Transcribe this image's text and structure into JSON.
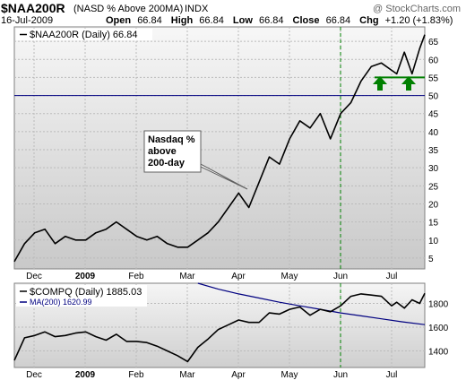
{
  "header": {
    "symbol": "$NAA200R",
    "name": "(NASD % Above 200MA)",
    "exchange": "INDX",
    "watermark": "@ StockCharts.com",
    "date": "16-Jul-2009",
    "open_label": "Open",
    "open": "66.84",
    "high_label": "High",
    "high": "66.84",
    "low_label": "Low",
    "low": "66.84",
    "close_label": "Close",
    "close": "66.84",
    "chg_label": "Chg",
    "chg": "+1.20 (+1.83%)"
  },
  "chart_data": [
    {
      "type": "line",
      "legend": "$NAA200R (Daily) 66.84",
      "ylim": [
        2,
        69
      ],
      "y_ticks": [
        "5",
        "10",
        "15",
        "20",
        "25",
        "30",
        "35",
        "40",
        "45",
        "50",
        "55",
        "60",
        "65"
      ],
      "x_ticks": [
        "Dec",
        "2009",
        "Feb",
        "Mar",
        "Apr",
        "May",
        "Jun",
        "Jul"
      ],
      "x_range": [
        0,
        161
      ],
      "annotation": [
        "Nasdaq %",
        "above",
        "200-day"
      ],
      "reference_line": 50,
      "support_line": 55,
      "x": [
        0,
        4,
        8,
        12,
        16,
        20,
        24,
        28,
        32,
        36,
        40,
        44,
        48,
        52,
        56,
        60,
        64,
        68,
        72,
        76,
        80,
        84,
        88,
        92,
        96,
        100,
        104,
        108,
        112,
        116,
        120,
        124,
        128,
        132,
        136,
        140,
        144,
        148,
        150,
        153,
        156,
        159,
        161
      ],
      "values": [
        4,
        9,
        12,
        13,
        9,
        11,
        10,
        10,
        12,
        13,
        15,
        13,
        11,
        10,
        11,
        9,
        8,
        8,
        10,
        12,
        15,
        19,
        23,
        19,
        26,
        33,
        31,
        38,
        43,
        41,
        45,
        38,
        45,
        48,
        54,
        58,
        59,
        57,
        56,
        62,
        56,
        63,
        66.84
      ],
      "colors": {
        "line": "#000000",
        "reference": "#000080",
        "support": "#007f00",
        "arrows": "#008000",
        "vertical": "#008000"
      }
    },
    {
      "type": "line",
      "legend": "$COMPQ (Daily) 1885.03",
      "ma_legend": "MA(200) 1620.99",
      "ylim": [
        1260,
        1970
      ],
      "y_ticks": [
        "1400",
        "1600",
        "1800"
      ],
      "x_ticks": [
        "Dec",
        "2009",
        "Feb",
        "Mar",
        "Apr",
        "May",
        "Jun",
        "Jul"
      ],
      "x_range": [
        0,
        161
      ],
      "series": [
        {
          "name": "$COMPQ",
          "x": [
            0,
            4,
            8,
            12,
            16,
            20,
            24,
            28,
            32,
            36,
            40,
            44,
            48,
            52,
            56,
            60,
            64,
            68,
            72,
            76,
            80,
            84,
            88,
            92,
            96,
            100,
            104,
            108,
            112,
            116,
            120,
            124,
            128,
            132,
            136,
            140,
            144,
            148,
            150,
            153,
            156,
            159,
            161
          ],
          "values": [
            1320,
            1510,
            1530,
            1560,
            1520,
            1530,
            1550,
            1560,
            1520,
            1490,
            1540,
            1480,
            1480,
            1470,
            1440,
            1400,
            1360,
            1310,
            1430,
            1500,
            1580,
            1620,
            1660,
            1640,
            1640,
            1720,
            1710,
            1750,
            1770,
            1700,
            1750,
            1730,
            1780,
            1860,
            1880,
            1870,
            1860,
            1780,
            1810,
            1760,
            1830,
            1800,
            1885
          ]
        },
        {
          "name": "MA(200)",
          "x": [
            72,
            80,
            88,
            96,
            104,
            112,
            120,
            128,
            136,
            144,
            152,
            161
          ],
          "values": [
            1970,
            1920,
            1880,
            1845,
            1810,
            1780,
            1750,
            1720,
            1695,
            1670,
            1645,
            1621
          ]
        }
      ],
      "colors": {
        "price": "#000000",
        "ma": "#000080"
      }
    }
  ]
}
